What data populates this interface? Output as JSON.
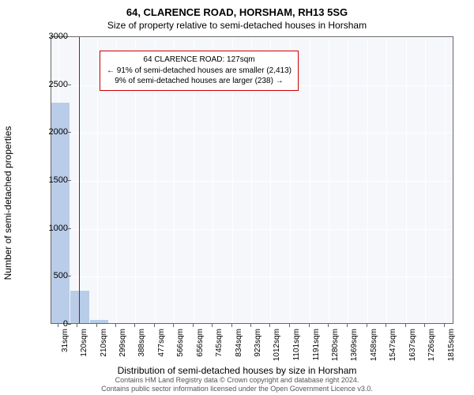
{
  "title": "64, CLARENCE ROAD, HORSHAM, RH13 5SG",
  "subtitle": "Size of property relative to semi-detached houses in Horsham",
  "chart": {
    "type": "bar",
    "background_color": "#f5f7fb",
    "bar_color": "#b9cce8",
    "grid_color": "#ffffff",
    "border_color": "#666666",
    "marker_color": "#cc0000",
    "ylabel": "Number of semi-detached properties",
    "xlabel": "Distribution of semi-detached houses by size in Horsham",
    "ylim": [
      0,
      3000
    ],
    "ytick_step": 500,
    "yticks": [
      0,
      500,
      1000,
      1500,
      2000,
      2500,
      3000
    ],
    "x_min": 0,
    "x_max": 1860,
    "xticks": [
      31,
      120,
      210,
      299,
      388,
      477,
      566,
      656,
      745,
      834,
      923,
      1012,
      1101,
      1191,
      1280,
      1369,
      1458,
      1547,
      1637,
      1726,
      1815
    ],
    "xtick_suffix": "sqm",
    "bars": [
      {
        "x0": 0,
        "x1": 89,
        "value": 2300
      },
      {
        "x0": 89,
        "x1": 178,
        "value": 340
      },
      {
        "x0": 178,
        "x1": 267,
        "value": 30
      }
    ],
    "marker_x": 127,
    "label_fontsize": 12,
    "tick_fontsize": 11
  },
  "info_box": {
    "line1": "64 CLARENCE ROAD: 127sqm",
    "line2": "← 91% of semi-detached houses are smaller (2,413)",
    "line3": "9% of semi-detached houses are larger (238) →",
    "border_color": "#cc0000"
  },
  "footer": {
    "line1": "Contains HM Land Registry data © Crown copyright and database right 2024.",
    "line2": "Contains public sector information licensed under the Open Government Licence v3.0."
  }
}
